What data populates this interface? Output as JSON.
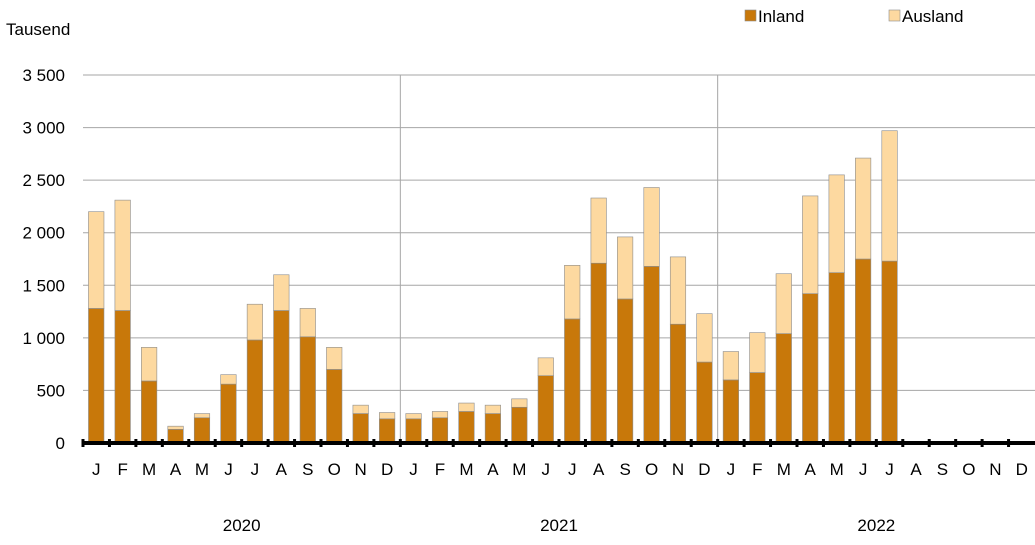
{
  "chart_data": {
    "type": "bar",
    "stacked": true,
    "ylabel": "Tausend",
    "ylim": [
      0,
      3500
    ],
    "yticks": [
      0,
      500,
      1000,
      1500,
      2000,
      2500,
      3000,
      3500
    ],
    "ytick_labels": [
      "0",
      "500",
      "1 000",
      "1 500",
      "2 000",
      "2 500",
      "3 000",
      "3 500"
    ],
    "grid": true,
    "legend_position": "top-right",
    "month_labels": [
      "J",
      "F",
      "M",
      "A",
      "M",
      "J",
      "J",
      "A",
      "S",
      "O",
      "N",
      "D"
    ],
    "years": [
      "2020",
      "2021",
      "2022"
    ],
    "colors": {
      "Inland": "#C8780A",
      "Ausland": "#FDD9A0",
      "grid": "#A6A6A6",
      "axis": "#000000",
      "bar_edge": "#8C8C8C"
    },
    "series": [
      {
        "name": "Inland",
        "values": [
          1280,
          1260,
          590,
          130,
          240,
          560,
          980,
          1260,
          1010,
          700,
          280,
          230,
          230,
          240,
          300,
          280,
          340,
          640,
          1180,
          1710,
          1370,
          1680,
          1130,
          770,
          600,
          670,
          1040,
          1420,
          1620,
          1750,
          1730,
          null,
          null,
          null,
          null,
          null
        ]
      },
      {
        "name": "Ausland",
        "values": [
          920,
          1050,
          320,
          30,
          40,
          90,
          340,
          340,
          270,
          210,
          80,
          60,
          50,
          60,
          80,
          80,
          80,
          170,
          510,
          620,
          590,
          750,
          640,
          460,
          270,
          380,
          570,
          930,
          930,
          960,
          1240,
          null,
          null,
          null,
          null,
          null
        ]
      }
    ]
  }
}
